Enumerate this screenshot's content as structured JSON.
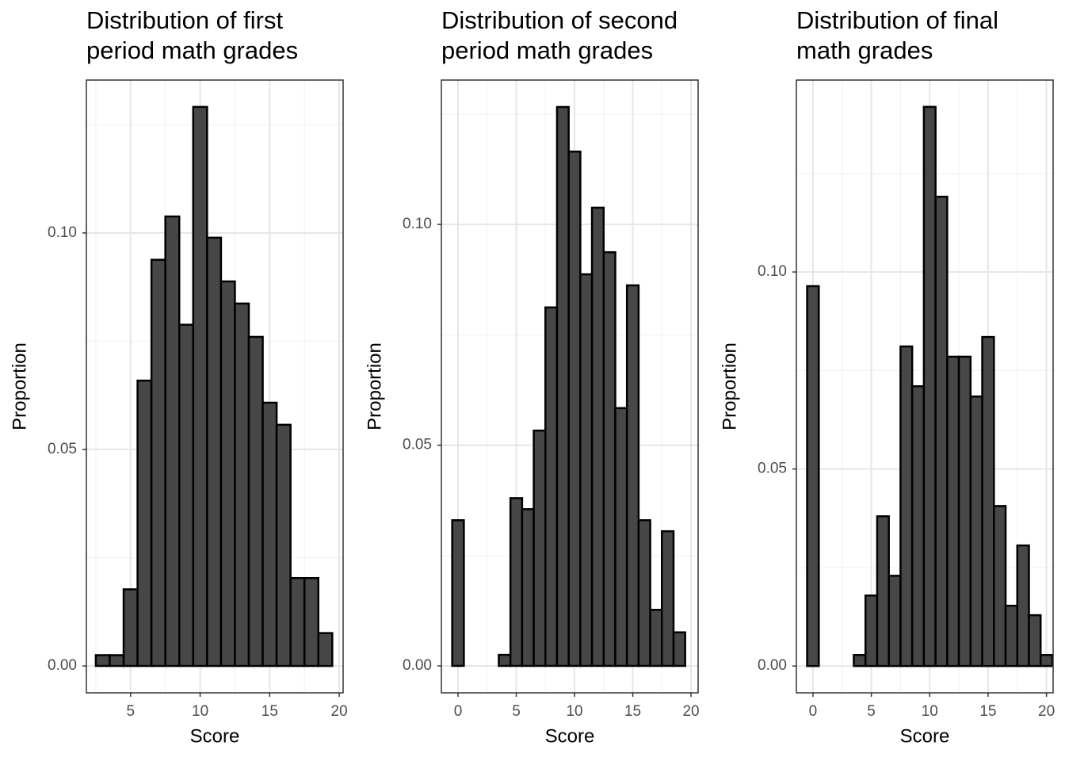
{
  "chart_data": [
    {
      "type": "histogram",
      "title": [
        "Distribution of first",
        "period math grades"
      ],
      "xlabel": "Score",
      "ylabel": "Proportion",
      "bins": [
        2.5,
        3.5,
        4.5,
        5.5,
        6.5,
        7.5,
        8.5,
        9.5,
        10.5,
        11.5,
        12.5,
        13.5,
        14.5,
        15.5,
        16.5,
        17.5,
        18.5,
        19.5
      ],
      "values": [
        0.0025,
        0.0025,
        0.0177,
        0.0659,
        0.0938,
        0.1038,
        0.0788,
        0.1291,
        0.0989,
        0.0888,
        0.0837,
        0.076,
        0.0608,
        0.0557,
        0.0203,
        0.0203,
        0.0076
      ],
      "color": "#474747",
      "edgecolor": "#000000",
      "xlim": [
        1.82,
        20.28
      ],
      "ylim": [
        -0.0062,
        0.1353
      ],
      "xticks": [
        5,
        10,
        15,
        20
      ],
      "yticks": [
        {
          "value": 0,
          "label": "0.00"
        },
        {
          "value": 0.05,
          "label": "0.05"
        },
        {
          "value": 0.1,
          "label": "0.10"
        }
      ],
      "grid": true
    },
    {
      "type": "histogram",
      "title": [
        "Distribution of second",
        "period math grades"
      ],
      "xlabel": "Score",
      "ylabel": "Proportion",
      "bins": [
        -0.5,
        0.5,
        1.5,
        2.5,
        3.5,
        4.5,
        5.5,
        6.5,
        7.5,
        8.5,
        9.5,
        10.5,
        11.5,
        12.5,
        13.5,
        14.5,
        15.5,
        16.5,
        17.5,
        18.5,
        19.5
      ],
      "values": [
        0.033,
        0,
        0,
        0,
        0.0025,
        0.038,
        0.0355,
        0.0533,
        0.0812,
        0.1266,
        0.1165,
        0.0887,
        0.1038,
        0.0937,
        0.0584,
        0.0862,
        0.033,
        0.0127,
        0.0305,
        0.0076
      ],
      "color": "#474747",
      "edgecolor": "#000000",
      "xlim": [
        -1.43,
        20.61
      ],
      "ylim": [
        -0.0061,
        0.1327
      ],
      "xticks": [
        0,
        5,
        10,
        15,
        20
      ],
      "yticks": [
        {
          "value": 0,
          "label": "0.00"
        },
        {
          "value": 0.05,
          "label": "0.05"
        },
        {
          "value": 0.1,
          "label": "0.10"
        }
      ],
      "grid": true
    },
    {
      "type": "histogram",
      "title": [
        "Distribution of final",
        "math grades"
      ],
      "xlabel": "Score",
      "ylabel": "Proportion",
      "bins": [
        -0.5,
        0.5,
        1.5,
        2.5,
        3.5,
        4.5,
        5.5,
        6.5,
        7.5,
        8.5,
        9.5,
        10.5,
        11.5,
        12.5,
        13.5,
        14.5,
        15.5,
        16.5,
        17.5,
        18.5,
        19.5,
        20.5
      ],
      "values": [
        0.0964,
        0,
        0,
        0,
        0.0028,
        0.0179,
        0.038,
        0.0229,
        0.0811,
        0.071,
        0.1419,
        0.1191,
        0.0785,
        0.0785,
        0.0684,
        0.0835,
        0.0406,
        0.0153,
        0.0306,
        0.0129,
        0.0028
      ],
      "color": "#474747",
      "edgecolor": "#000000",
      "xlim": [
        -1.42,
        20.57
      ],
      "ylim": [
        -0.0068,
        0.1487
      ],
      "xticks": [
        0,
        5,
        10,
        15,
        20
      ],
      "yticks": [
        {
          "value": 0,
          "label": "0.00"
        },
        {
          "value": 0.05,
          "label": "0.05"
        },
        {
          "value": 0.1,
          "label": "0.10"
        }
      ],
      "grid": true
    }
  ]
}
